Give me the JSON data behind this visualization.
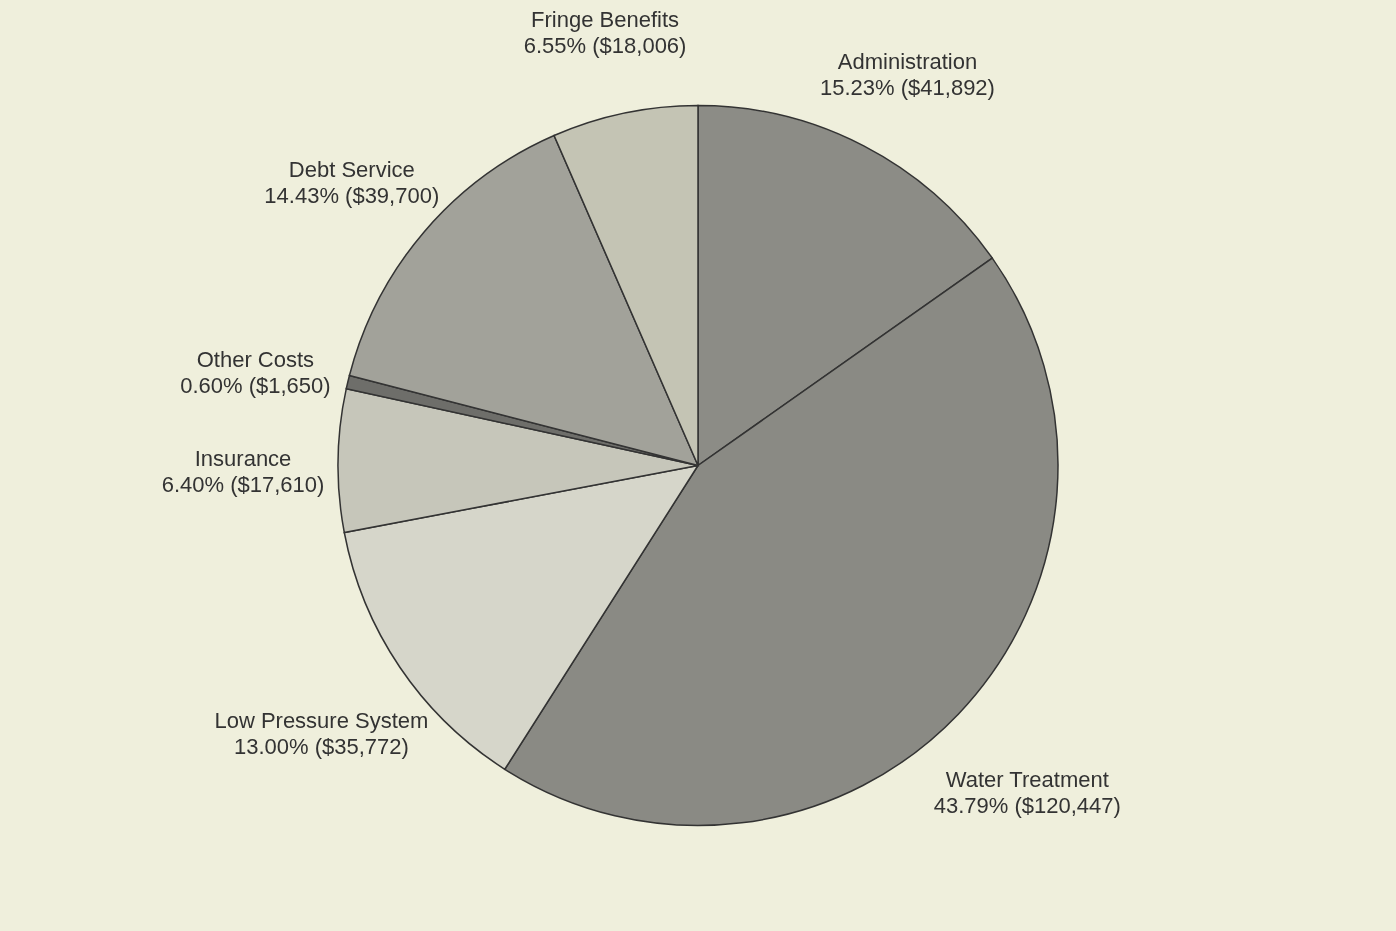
{
  "chart_data": {
    "type": "pie",
    "categories": [
      "Administration",
      "Water Treatment",
      "Low Pressure System",
      "Insurance",
      "Other Costs",
      "Debt Service",
      "Fringe Benefits"
    ],
    "values": [
      41892,
      120447,
      35772,
      17610,
      1650,
      39700,
      18006
    ],
    "value_labels": [
      "15.23% ($41,892)",
      "43.79% ($120,447)",
      "13.00% ($35,772)",
      "6.40% ($17,610)",
      "0.60% ($1,650)",
      "14.43% ($39,700)",
      "6.55% ($18,006)"
    ],
    "colors": [
      "#8c8c86",
      "#8a8a84",
      "#d6d6ca",
      "#c6c6ba",
      "#6e6e6a",
      "#a2a29a",
      "#c4c4b4"
    ]
  }
}
